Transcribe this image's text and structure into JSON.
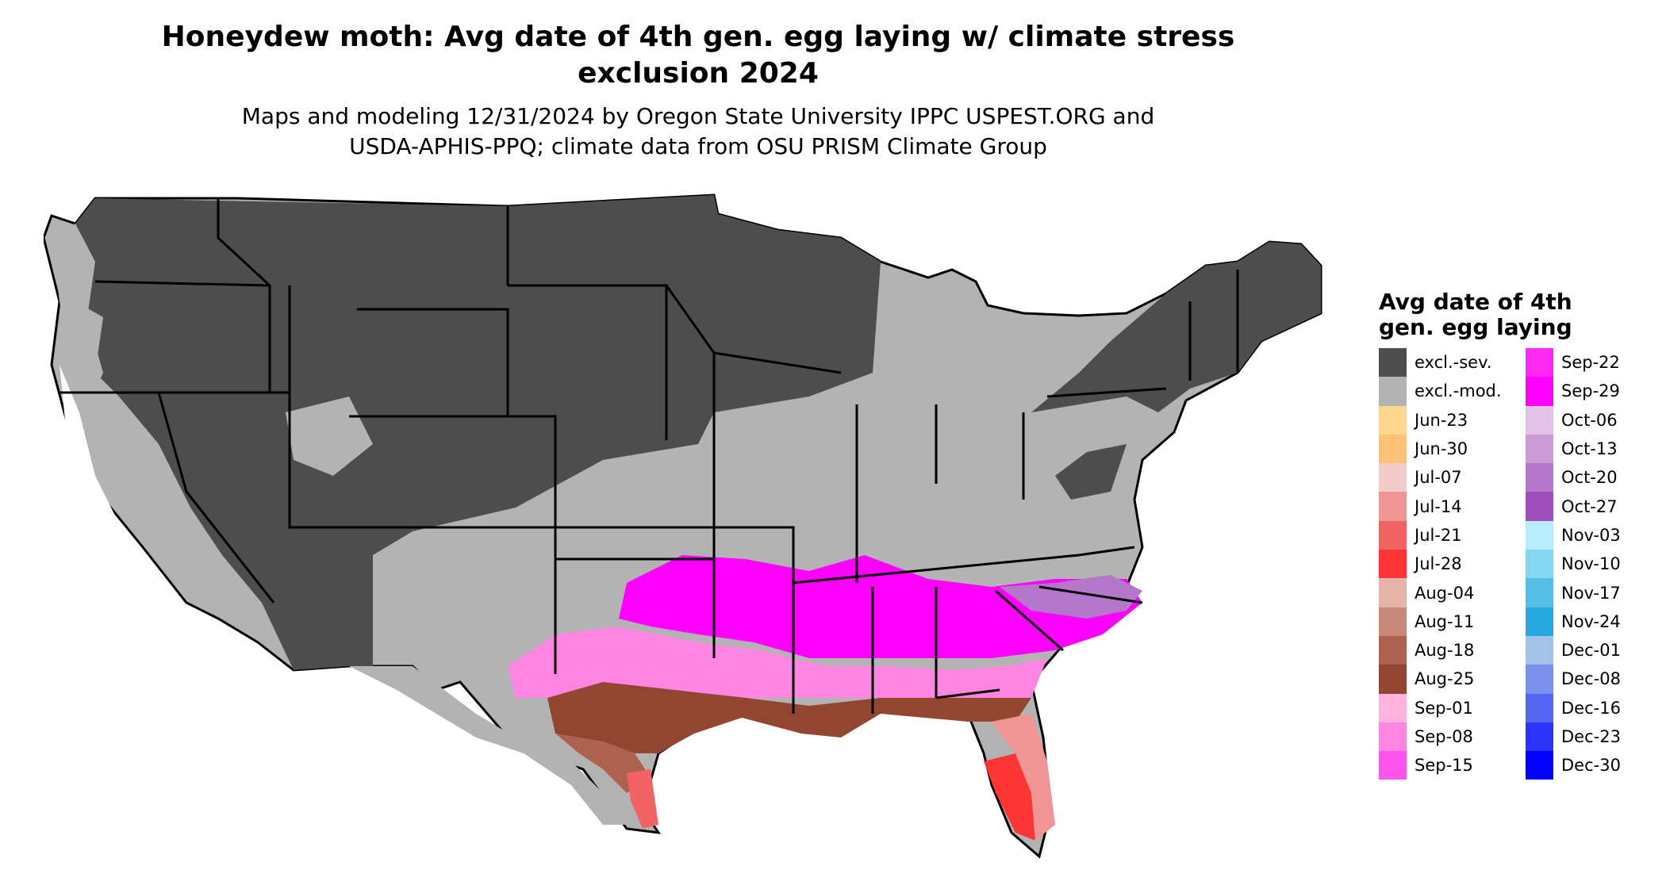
{
  "title": "Honeydew moth: Avg date of 4th gen. egg laying w/ climate stress exclusion 2024",
  "title_line1": "Honeydew moth: Avg date of 4th gen. egg laying w/ climate stress",
  "title_line2": "exclusion 2024",
  "subtitle_line1": "Maps and modeling 12/31/2024 by Oregon State University IPPC USPEST.ORG and",
  "subtitle_line2": "USDA-APHIS-PPQ; climate data from OSU PRISM Climate Group",
  "legend": {
    "title_line1": "Avg date of 4th",
    "title_line2": "gen. egg laying",
    "col1": [
      {
        "label": "excl.-sev.",
        "color": "#4d4d4d"
      },
      {
        "label": "excl.-mod.",
        "color": "#b3b3b3"
      },
      {
        "label": "Jun-23",
        "color": "#fed68d"
      },
      {
        "label": "Jun-30",
        "color": "#fcc276"
      },
      {
        "label": "Jul-07",
        "color": "#f2cbcb"
      },
      {
        "label": "Jul-14",
        "color": "#f09595"
      },
      {
        "label": "Jul-21",
        "color": "#f26464"
      },
      {
        "label": "Jul-28",
        "color": "#fc3535"
      },
      {
        "label": "Aug-04",
        "color": "#e6b3a8"
      },
      {
        "label": "Aug-11",
        "color": "#c9897a"
      },
      {
        "label": "Aug-18",
        "color": "#ad6250"
      },
      {
        "label": "Aug-25",
        "color": "#924530"
      },
      {
        "label": "Sep-01",
        "color": "#ffb3dd"
      },
      {
        "label": "Sep-08",
        "color": "#ff85e0"
      },
      {
        "label": "Sep-15",
        "color": "#ff55ee"
      }
    ],
    "col2": [
      {
        "label": "Sep-22",
        "color": "#ff2af2"
      },
      {
        "label": "Sep-29",
        "color": "#ff00ff"
      },
      {
        "label": "Oct-06",
        "color": "#e3c3e7"
      },
      {
        "label": "Oct-13",
        "color": "#cc9bd6"
      },
      {
        "label": "Oct-20",
        "color": "#b577c9"
      },
      {
        "label": "Oct-27",
        "color": "#9f4fbd"
      },
      {
        "label": "Nov-03",
        "color": "#b9ecfc"
      },
      {
        "label": "Nov-10",
        "color": "#85d6f0"
      },
      {
        "label": "Nov-17",
        "color": "#55bde6"
      },
      {
        "label": "Nov-24",
        "color": "#25a8dd"
      },
      {
        "label": "Dec-01",
        "color": "#a3c2e8"
      },
      {
        "label": "Dec-08",
        "color": "#7a90eb"
      },
      {
        "label": "Dec-16",
        "color": "#5566f0"
      },
      {
        "label": "Dec-23",
        "color": "#2b33f7"
      },
      {
        "label": "Dec-30",
        "color": "#0000ff"
      }
    ]
  },
  "map_colors": {
    "severe": "#4d4d4d",
    "moderate": "#b3b3b3",
    "water": "#ffffff",
    "border": "#000000"
  }
}
